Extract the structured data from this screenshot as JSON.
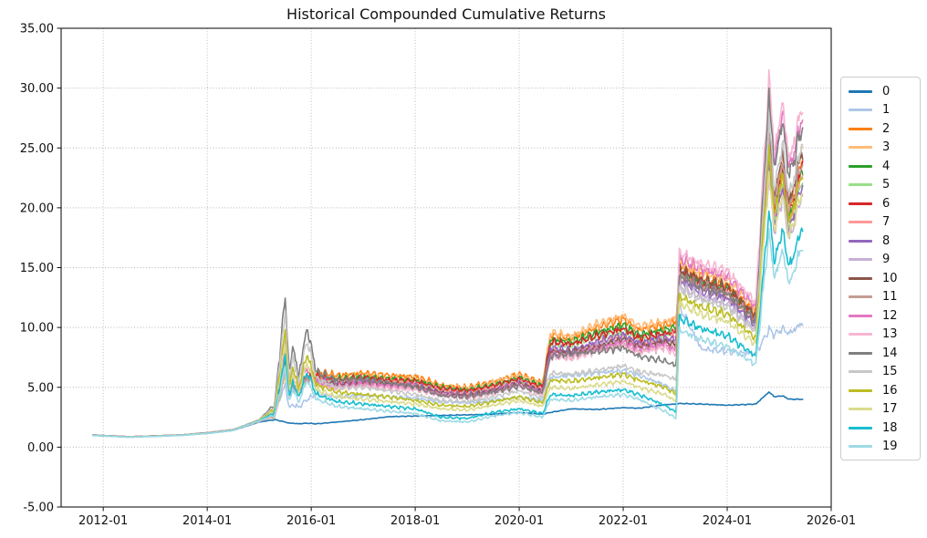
{
  "chart_data": {
    "type": "line",
    "title": "Historical Compounded Cumulative Returns",
    "x_axis": {
      "tick_labels": [
        "2012-01",
        "2014-01",
        "2016-01",
        "2018-01",
        "2020-01",
        "2022-01",
        "2024-01",
        "2026-01"
      ],
      "tick_positions_years": [
        2012,
        2014,
        2016,
        2018,
        2020,
        2022,
        2024,
        2026
      ],
      "range_years": [
        2011.19,
        2026.0
      ]
    },
    "y_axis": {
      "tick_labels": [
        "-5.00",
        "0.00",
        "5.00",
        "10.00",
        "15.00",
        "20.00",
        "25.00",
        "30.00",
        "35.00"
      ],
      "tick_values": [
        -5,
        0,
        5,
        10,
        15,
        20,
        25,
        30,
        35
      ],
      "range": [
        -5,
        35
      ]
    },
    "grid": {
      "visible": true,
      "style": "dotted",
      "color": "#b5b5b5"
    },
    "legend": {
      "position": "right-outside",
      "border_color": "#cccccc"
    },
    "sample_dates_decimal_years": [
      2011.8,
      2012.0,
      2012.5,
      2013.0,
      2013.5,
      2014.0,
      2014.5,
      2015.0,
      2015.3,
      2015.5,
      2015.58,
      2015.65,
      2015.75,
      2015.92,
      2016.1,
      2016.5,
      2017.0,
      2017.5,
      2018.0,
      2018.5,
      2019.0,
      2019.5,
      2020.0,
      2020.45,
      2020.6,
      2021.0,
      2021.5,
      2022.0,
      2022.3,
      2022.8,
      2023.02,
      2023.08,
      2023.5,
      2024.0,
      2024.55,
      2024.8,
      2024.92,
      2025.05,
      2025.2,
      2025.45
    ],
    "series": [
      {
        "name": "0",
        "color": "#1f77b4",
        "values": [
          1.0,
          0.95,
          0.85,
          0.92,
          1.0,
          1.15,
          1.4,
          2.1,
          2.3,
          2.1,
          2.0,
          2.0,
          1.95,
          2.0,
          1.95,
          2.1,
          2.3,
          2.55,
          2.6,
          2.65,
          2.7,
          2.75,
          2.9,
          2.75,
          2.9,
          3.2,
          3.15,
          3.3,
          3.25,
          3.55,
          3.6,
          3.65,
          3.6,
          3.5,
          3.6,
          4.6,
          4.2,
          4.3,
          4.0,
          4.0
        ]
      },
      {
        "name": "1",
        "color": "#aec7e8",
        "values": [
          1.0,
          0.95,
          0.85,
          0.92,
          1.0,
          1.17,
          1.41,
          2.15,
          2.9,
          5.2,
          3.2,
          3.6,
          3.3,
          4.0,
          4.4,
          4.2,
          4.3,
          4.2,
          4.1,
          3.8,
          3.7,
          3.9,
          4.2,
          3.9,
          5.8,
          6.0,
          6.2,
          6.4,
          6.0,
          5.2,
          4.6,
          11.8,
          8.2,
          8.0,
          7.8,
          9.8,
          9.4,
          9.9,
          9.5,
          10.4
        ]
      },
      {
        "name": "2",
        "color": "#ff7f0e",
        "values": [
          1.02,
          0.97,
          0.87,
          0.94,
          1.02,
          1.2,
          1.45,
          2.2,
          2.6,
          6.2,
          4.2,
          5.2,
          4.6,
          5.9,
          6.3,
          6.0,
          6.2,
          6.0,
          5.9,
          5.2,
          5.0,
          5.5,
          6.1,
          5.4,
          9.4,
          9.1,
          10.0,
          10.7,
          9.8,
          10.2,
          10.5,
          15.2,
          14.2,
          13.6,
          11.2,
          25.2,
          19.9,
          23.5,
          19.4,
          24.5
        ]
      },
      {
        "name": "3",
        "color": "#ffbb78",
        "values": [
          1.01,
          0.96,
          0.86,
          0.93,
          1.01,
          1.19,
          1.44,
          2.18,
          2.55,
          6.0,
          4.1,
          5.0,
          4.5,
          5.7,
          6.1,
          5.8,
          6.0,
          5.8,
          5.7,
          5.1,
          4.9,
          5.4,
          6.0,
          5.3,
          9.6,
          9.3,
          10.3,
          11.0,
          10.1,
          10.5,
          10.8,
          15.6,
          14.6,
          14.0,
          11.5,
          26.0,
          20.6,
          24.3,
          20.1,
          25.4
        ]
      },
      {
        "name": "4",
        "color": "#2ca02c",
        "values": [
          1.02,
          0.96,
          0.86,
          0.93,
          1.01,
          1.19,
          1.44,
          2.17,
          2.6,
          6.4,
          4.3,
          5.1,
          4.6,
          5.8,
          6.0,
          5.7,
          5.9,
          5.7,
          5.6,
          5.0,
          4.8,
          5.2,
          5.8,
          5.1,
          9.0,
          8.8,
          9.6,
          10.2,
          9.4,
          9.8,
          10.0,
          14.8,
          13.8,
          13.2,
          10.8,
          24.6,
          19.4,
          23.0,
          19.0,
          23.6
        ]
      },
      {
        "name": "5",
        "color": "#98df8a",
        "values": [
          1.01,
          0.96,
          0.86,
          0.92,
          1.0,
          1.18,
          1.43,
          2.15,
          2.55,
          6.1,
          4.2,
          5.0,
          4.5,
          5.6,
          5.8,
          5.5,
          5.7,
          5.5,
          5.4,
          4.8,
          4.6,
          5.0,
          5.6,
          4.9,
          8.7,
          8.5,
          9.2,
          9.8,
          9.0,
          9.4,
          9.7,
          14.4,
          13.4,
          12.8,
          10.5,
          23.8,
          18.8,
          22.2,
          18.3,
          22.7
        ]
      },
      {
        "name": "6",
        "color": "#d62728",
        "values": [
          1.02,
          0.97,
          0.87,
          0.94,
          1.02,
          1.2,
          1.45,
          2.2,
          2.65,
          6.6,
          4.4,
          5.2,
          4.7,
          5.9,
          5.9,
          5.6,
          5.8,
          5.6,
          5.5,
          4.9,
          4.7,
          5.1,
          5.7,
          5.0,
          8.8,
          8.6,
          9.3,
          9.9,
          9.1,
          9.5,
          9.6,
          14.6,
          13.7,
          13.1,
          10.7,
          25.0,
          19.8,
          23.4,
          19.3,
          24.0
        ]
      },
      {
        "name": "7",
        "color": "#ff9896",
        "values": [
          1.01,
          0.96,
          0.86,
          0.93,
          1.01,
          1.19,
          1.43,
          2.16,
          2.6,
          6.3,
          4.3,
          5.1,
          4.6,
          5.7,
          5.7,
          5.4,
          5.6,
          5.4,
          5.3,
          4.7,
          4.5,
          4.9,
          5.5,
          4.8,
          8.1,
          8.0,
          8.7,
          9.3,
          8.6,
          9.0,
          9.3,
          14.2,
          13.3,
          12.7,
          10.4,
          24.2,
          19.1,
          22.6,
          18.6,
          23.1
        ]
      },
      {
        "name": "8",
        "color": "#9467bd",
        "values": [
          1.01,
          0.96,
          0.86,
          0.93,
          1.0,
          1.18,
          1.43,
          2.15,
          2.7,
          6.8,
          4.4,
          5.2,
          4.6,
          5.8,
          5.6,
          5.3,
          5.5,
          5.3,
          5.2,
          4.6,
          4.4,
          4.8,
          5.4,
          4.7,
          8.3,
          8.1,
          8.8,
          9.4,
          8.7,
          9.1,
          9.0,
          13.9,
          13.0,
          12.4,
          10.2,
          23.3,
          18.4,
          21.8,
          18.0,
          22.2
        ]
      },
      {
        "name": "9",
        "color": "#c5b0d5",
        "values": [
          1.0,
          0.95,
          0.85,
          0.92,
          1.0,
          1.18,
          1.42,
          2.14,
          2.65,
          6.5,
          4.3,
          5.0,
          4.5,
          5.6,
          5.4,
          5.1,
          5.3,
          5.1,
          5.0,
          4.4,
          4.2,
          4.6,
          5.2,
          4.5,
          7.9,
          7.8,
          8.5,
          9.0,
          8.3,
          8.7,
          8.7,
          13.5,
          12.6,
          12.0,
          9.8,
          22.5,
          17.8,
          21.0,
          17.3,
          21.3
        ]
      },
      {
        "name": "10",
        "color": "#8c564b",
        "values": [
          1.02,
          0.97,
          0.87,
          0.94,
          1.02,
          1.2,
          1.46,
          2.22,
          2.8,
          7.2,
          4.6,
          5.3,
          4.8,
          6.0,
          5.5,
          5.2,
          5.4,
          5.2,
          5.1,
          4.5,
          4.3,
          4.7,
          5.3,
          4.6,
          8.0,
          7.9,
          8.4,
          9.0,
          8.4,
          8.8,
          8.5,
          14.9,
          14.0,
          13.4,
          11.0,
          26.3,
          20.8,
          24.6,
          20.3,
          25.0
        ]
      },
      {
        "name": "11",
        "color": "#c49c94",
        "values": [
          1.01,
          0.96,
          0.86,
          0.93,
          1.01,
          1.19,
          1.44,
          2.18,
          2.75,
          6.9,
          4.5,
          5.2,
          4.7,
          5.8,
          5.3,
          5.0,
          5.2,
          5.0,
          4.9,
          4.3,
          4.1,
          4.5,
          5.1,
          4.4,
          7.6,
          7.5,
          8.1,
          8.6,
          8.0,
          8.4,
          8.2,
          14.4,
          13.5,
          12.9,
          10.6,
          25.6,
          20.2,
          23.9,
          19.7,
          24.1
        ]
      },
      {
        "name": "12",
        "color": "#e377c2",
        "values": [
          1.02,
          0.97,
          0.87,
          0.94,
          1.02,
          1.2,
          1.46,
          2.25,
          3.0,
          8.2,
          4.6,
          5.9,
          5.0,
          6.6,
          5.4,
          5.1,
          5.3,
          5.1,
          5.0,
          4.4,
          4.2,
          4.6,
          5.2,
          4.5,
          7.8,
          7.7,
          8.2,
          8.8,
          8.2,
          8.6,
          8.0,
          15.8,
          14.9,
          14.3,
          11.7,
          30.0,
          23.8,
          28.1,
          23.2,
          27.6
        ]
      },
      {
        "name": "13",
        "color": "#f7b6d2",
        "values": [
          1.01,
          0.96,
          0.86,
          0.93,
          1.01,
          1.19,
          1.45,
          2.24,
          3.1,
          8.8,
          4.9,
          6.3,
          5.2,
          7.0,
          5.2,
          4.9,
          5.1,
          4.9,
          4.8,
          4.3,
          4.1,
          4.5,
          5.1,
          4.4,
          7.5,
          7.4,
          8.0,
          8.4,
          7.9,
          8.3,
          7.7,
          16.3,
          15.3,
          14.7,
          12.1,
          30.8,
          24.5,
          28.9,
          23.9,
          28.7
        ]
      },
      {
        "name": "14",
        "color": "#7f7f7f",
        "values": [
          1.0,
          0.95,
          0.85,
          0.92,
          1.0,
          1.18,
          1.44,
          2.3,
          3.6,
          12.6,
          6.0,
          8.7,
          5.8,
          10.0,
          6.3,
          5.6,
          5.7,
          5.4,
          5.0,
          4.3,
          4.2,
          4.6,
          5.1,
          4.5,
          7.6,
          7.8,
          8.0,
          8.3,
          7.6,
          7.2,
          6.8,
          14.3,
          13.4,
          12.8,
          10.5,
          29.3,
          23.2,
          27.4,
          22.6,
          27.0
        ]
      },
      {
        "name": "15",
        "color": "#c7c7c7",
        "values": [
          1.0,
          0.95,
          0.85,
          0.92,
          1.0,
          1.17,
          1.43,
          2.28,
          3.4,
          11.2,
          5.4,
          7.8,
          5.3,
          9.0,
          5.7,
          5.0,
          5.0,
          4.7,
          4.4,
          3.9,
          3.8,
          4.2,
          4.7,
          4.1,
          6.2,
          6.1,
          6.4,
          6.8,
          6.3,
          6.0,
          5.6,
          13.2,
          12.3,
          11.7,
          9.6,
          27.2,
          21.5,
          25.4,
          21.0,
          25.5
        ]
      },
      {
        "name": "16",
        "color": "#bcbd22",
        "values": [
          1.0,
          0.95,
          0.85,
          0.92,
          1.0,
          1.17,
          1.42,
          2.26,
          3.2,
          9.6,
          4.8,
          6.9,
          4.8,
          7.8,
          5.2,
          4.6,
          4.4,
          4.2,
          3.9,
          3.5,
          3.4,
          3.8,
          4.2,
          3.7,
          5.6,
          5.5,
          5.8,
          6.1,
          5.6,
          5.0,
          4.4,
          12.6,
          11.7,
          11.1,
          9.1,
          24.4,
          19.3,
          22.8,
          18.8,
          23.1
        ]
      },
      {
        "name": "17",
        "color": "#dbdb8d",
        "values": [
          1.0,
          0.95,
          0.85,
          0.92,
          1.0,
          1.16,
          1.41,
          2.24,
          3.0,
          8.6,
          4.4,
          6.2,
          4.4,
          7.0,
          4.8,
          4.2,
          4.0,
          3.8,
          3.6,
          3.2,
          3.1,
          3.5,
          3.9,
          3.4,
          5.0,
          4.9,
          5.2,
          5.5,
          5.0,
          4.4,
          3.8,
          12.0,
          11.1,
          10.5,
          8.6,
          22.8,
          18.0,
          21.3,
          17.6,
          21.6
        ]
      },
      {
        "name": "18",
        "color": "#17becf",
        "values": [
          1.0,
          0.94,
          0.84,
          0.91,
          0.99,
          1.16,
          1.41,
          2.22,
          2.9,
          7.6,
          4.0,
          5.6,
          4.1,
          6.3,
          4.4,
          3.8,
          3.6,
          3.4,
          3.2,
          2.5,
          2.4,
          2.9,
          3.2,
          2.8,
          4.4,
          4.3,
          4.6,
          4.8,
          4.4,
          3.5,
          2.9,
          10.8,
          9.9,
          9.3,
          7.6,
          19.6,
          15.4,
          18.2,
          15.0,
          18.5
        ]
      },
      {
        "name": "19",
        "color": "#9edae5",
        "values": [
          0.99,
          0.93,
          0.83,
          0.9,
          0.98,
          1.15,
          1.4,
          2.2,
          2.7,
          6.7,
          3.6,
          5.0,
          3.7,
          5.6,
          4.0,
          3.4,
          3.2,
          3.0,
          2.8,
          2.2,
          2.1,
          2.6,
          2.9,
          2.5,
          4.0,
          3.9,
          4.2,
          4.4,
          4.0,
          3.0,
          2.4,
          9.8,
          9.0,
          8.4,
          6.9,
          17.8,
          14.0,
          16.5,
          13.6,
          17.0
        ]
      }
    ]
  }
}
